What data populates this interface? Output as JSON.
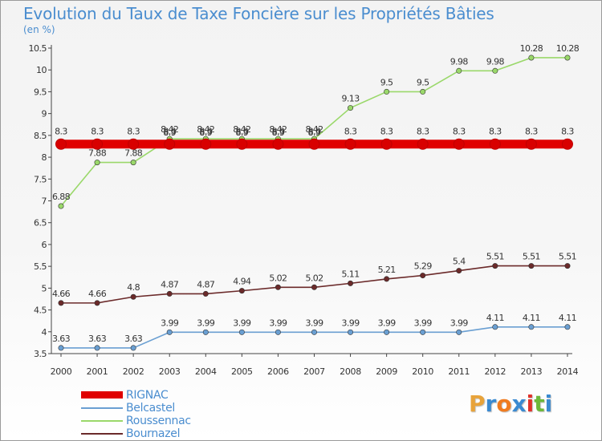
{
  "header": {
    "title": "Evolution du Taux de Taxe Foncière sur les Propriétés Bâties",
    "unit": "(en %)"
  },
  "logo": {
    "text": "Proxiti",
    "colors": [
      "#e8a33a",
      "#3a8ad1",
      "#f07b1f",
      "#3a8ad1",
      "#e0332b",
      "#6db83a",
      "#3a8ad1"
    ]
  },
  "chart_data": {
    "type": "line",
    "title": "Evolution du Taux de Taxe Foncière sur les Propriétés Bâties",
    "ylabel": "(en %)",
    "xlabel": "",
    "x": [
      2000,
      2001,
      2002,
      2003,
      2004,
      2005,
      2006,
      2007,
      2008,
      2009,
      2010,
      2011,
      2012,
      2013,
      2014
    ],
    "ylim": [
      3.5,
      10.5
    ],
    "yticks": [
      3.5,
      4,
      4.5,
      5,
      5.5,
      6,
      6.5,
      7,
      7.5,
      8,
      8.5,
      9,
      9.5,
      10,
      10.5
    ],
    "grid": false,
    "legend_position": "bottom-left",
    "series": [
      {
        "name": "RIGNAC",
        "color": "#e00000",
        "values": [
          8.3,
          8.3,
          8.3,
          8.3,
          8.3,
          8.3,
          8.3,
          8.3,
          8.3,
          8.3,
          8.3,
          8.3,
          8.3,
          8.3,
          8.3
        ],
        "labels": [
          "8.3",
          "8.3",
          "8.3",
          "8.3",
          "8.3",
          "8.3",
          "8.3",
          "8.3",
          "8.3",
          "8.3",
          "8.3",
          "8.3",
          "8.3",
          "8.3",
          "8.3"
        ]
      },
      {
        "name": "Belcastel",
        "color": "#6a9fd2",
        "values": [
          3.63,
          3.63,
          3.63,
          3.99,
          3.99,
          3.99,
          3.99,
          3.99,
          3.99,
          3.99,
          3.99,
          3.99,
          4.11,
          4.11,
          4.11
        ],
        "labels": [
          "3.63",
          "3.63",
          "3.63",
          "3.99",
          "3.99",
          "3.99",
          "3.99",
          "3.99",
          "3.99",
          "3.99",
          "3.99",
          "3.99",
          "4.11",
          "4.11",
          "4.11"
        ]
      },
      {
        "name": "Roussennac",
        "color": "#9ad86a",
        "values": [
          6.88,
          7.88,
          7.88,
          8.42,
          8.42,
          8.42,
          8.42,
          8.42,
          9.13,
          9.5,
          9.5,
          9.98,
          9.98,
          10.28,
          10.28
        ],
        "labels": [
          "6.88",
          "7.88",
          "7.88",
          "8.42",
          "8.42",
          "8.42",
          "8.42",
          "8.42",
          "9.13",
          "9.5",
          "9.5",
          "9.98",
          "9.98",
          "10.28",
          "10.28"
        ]
      },
      {
        "name": "Bournazel",
        "color": "#6b2a2a",
        "values": [
          4.66,
          4.66,
          4.8,
          4.87,
          4.87,
          4.94,
          5.02,
          5.02,
          5.11,
          5.21,
          5.29,
          5.4,
          5.51,
          5.51,
          5.51
        ],
        "labels": [
          "4.66",
          "4.66",
          "4.8",
          "4.87",
          "4.87",
          "4.94",
          "5.02",
          "5.02",
          "5.11",
          "5.21",
          "5.29",
          "5.4",
          "5.51",
          "5.51",
          "5.51"
        ]
      }
    ],
    "overlapping_labels": [
      "8.9",
      "8.9",
      "8.9",
      "8.9",
      "8.9"
    ]
  }
}
